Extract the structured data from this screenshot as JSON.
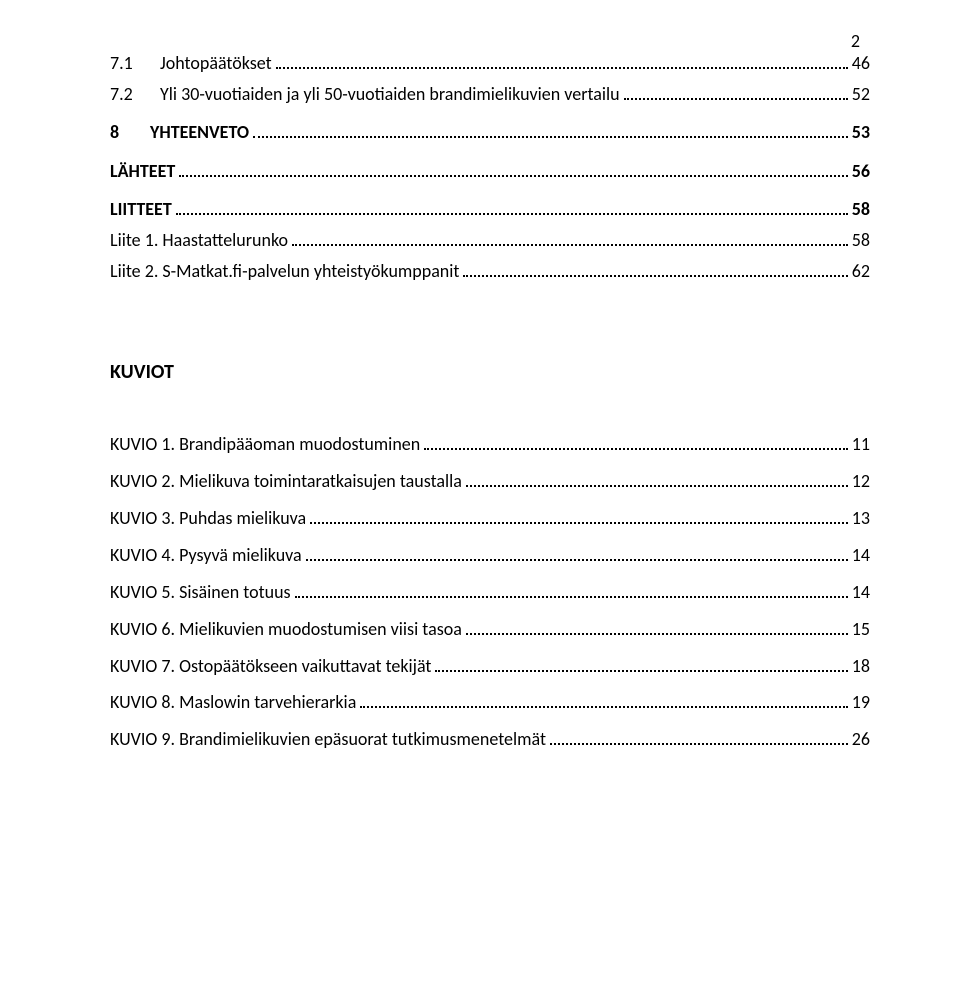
{
  "pageNumber": "2",
  "toc": {
    "entries": [
      {
        "num": "7.1",
        "title": "Johtopäätökset",
        "page": "46",
        "level": "sub"
      },
      {
        "num": "7.2",
        "title": "Yli 30-vuotiaiden ja yli 50-vuotiaiden brandimielikuvien vertailu",
        "page": "52",
        "level": "sub"
      },
      {
        "num": "8",
        "title": "YHTEENVETO",
        "page": "53",
        "level": "top"
      },
      {
        "num": "",
        "title": "LÄHTEET",
        "page": "56",
        "level": "topnonum"
      },
      {
        "num": "",
        "title": "LIITTEET",
        "page": "58",
        "level": "topnonum"
      },
      {
        "num": "",
        "title": "Liite 1. Haastattelurunko",
        "page": "58",
        "level": "plain"
      },
      {
        "num": "",
        "title": "Liite 2. S-Matkat.fi-palvelun yhteistyökumppanit",
        "page": "62",
        "level": "plain"
      }
    ]
  },
  "kuviotHeading": "KUVIOT",
  "kuviot": {
    "entries": [
      {
        "title": "KUVIO 1. Brandipääoman muodostuminen",
        "page": "11"
      },
      {
        "title": "KUVIO 2. Mielikuva toimintaratkaisujen taustalla",
        "page": "12"
      },
      {
        "title": "KUVIO 3. Puhdas mielikuva",
        "page": "13"
      },
      {
        "title": "KUVIO 4. Pysyvä mielikuva",
        "page": "14"
      },
      {
        "title": "KUVIO 5. Sisäinen totuus",
        "page": "14"
      },
      {
        "title": "KUVIO 6. Mielikuvien muodostumisen viisi tasoa",
        "page": "15"
      },
      {
        "title": "KUVIO 7. Ostopäätökseen vaikuttavat tekijät",
        "page": "18"
      },
      {
        "title": "KUVIO 8. Maslowin tarvehierarkia",
        "page": "19"
      },
      {
        "title": "KUVIO 9. Brandimielikuvien epäsuorat tutkimusmenetelmät",
        "page": "26"
      }
    ]
  }
}
